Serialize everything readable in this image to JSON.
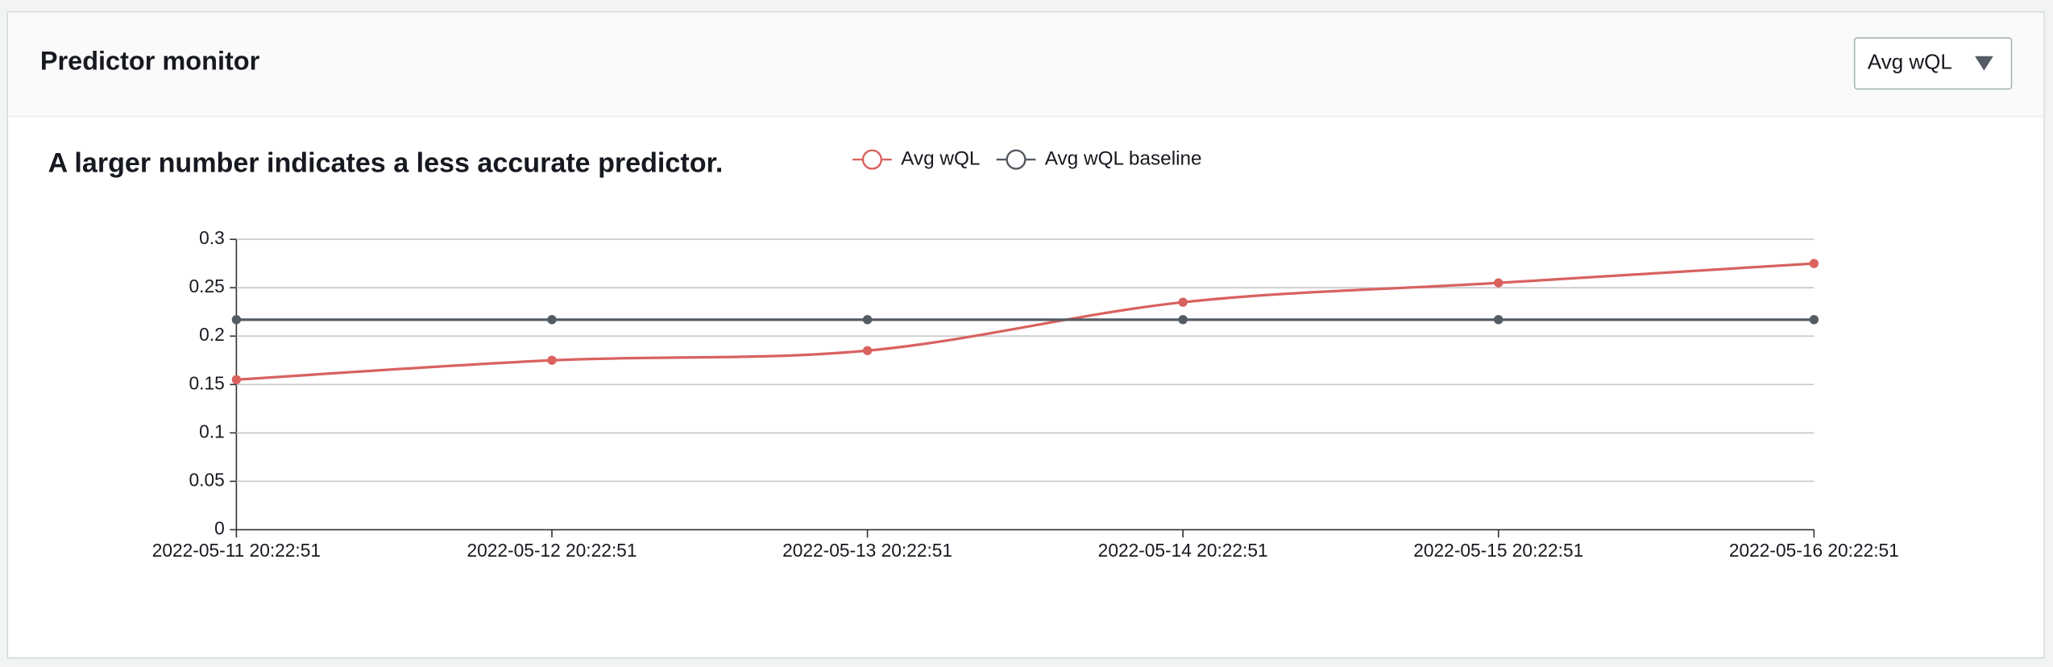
{
  "header": {
    "title": "Predictor monitor",
    "dropdown": "Avg wQL"
  },
  "chart_data": {
    "type": "line",
    "title": "A larger number indicates a less accurate predictor.",
    "x": [
      "2022-05-11 20:22:51",
      "2022-05-12 20:22:51",
      "2022-05-13 20:22:51",
      "2022-05-14 20:22:51",
      "2022-05-15 20:22:51",
      "2022-05-16 20:22:51"
    ],
    "series": [
      {
        "name": "Avg wQL",
        "color": "#d9625f",
        "values": [
          0.155,
          0.175,
          0.185,
          0.235,
          0.255,
          0.275
        ]
      },
      {
        "name": "Avg wQL baseline",
        "color": "#545b64",
        "values": [
          0.217,
          0.217,
          0.217,
          0.217,
          0.217,
          0.217
        ]
      }
    ],
    "ylim": [
      0,
      0.3
    ],
    "yticks": [
      0,
      0.05,
      0.1,
      0.15,
      0.2,
      0.25,
      0.3
    ],
    "grid": true
  }
}
